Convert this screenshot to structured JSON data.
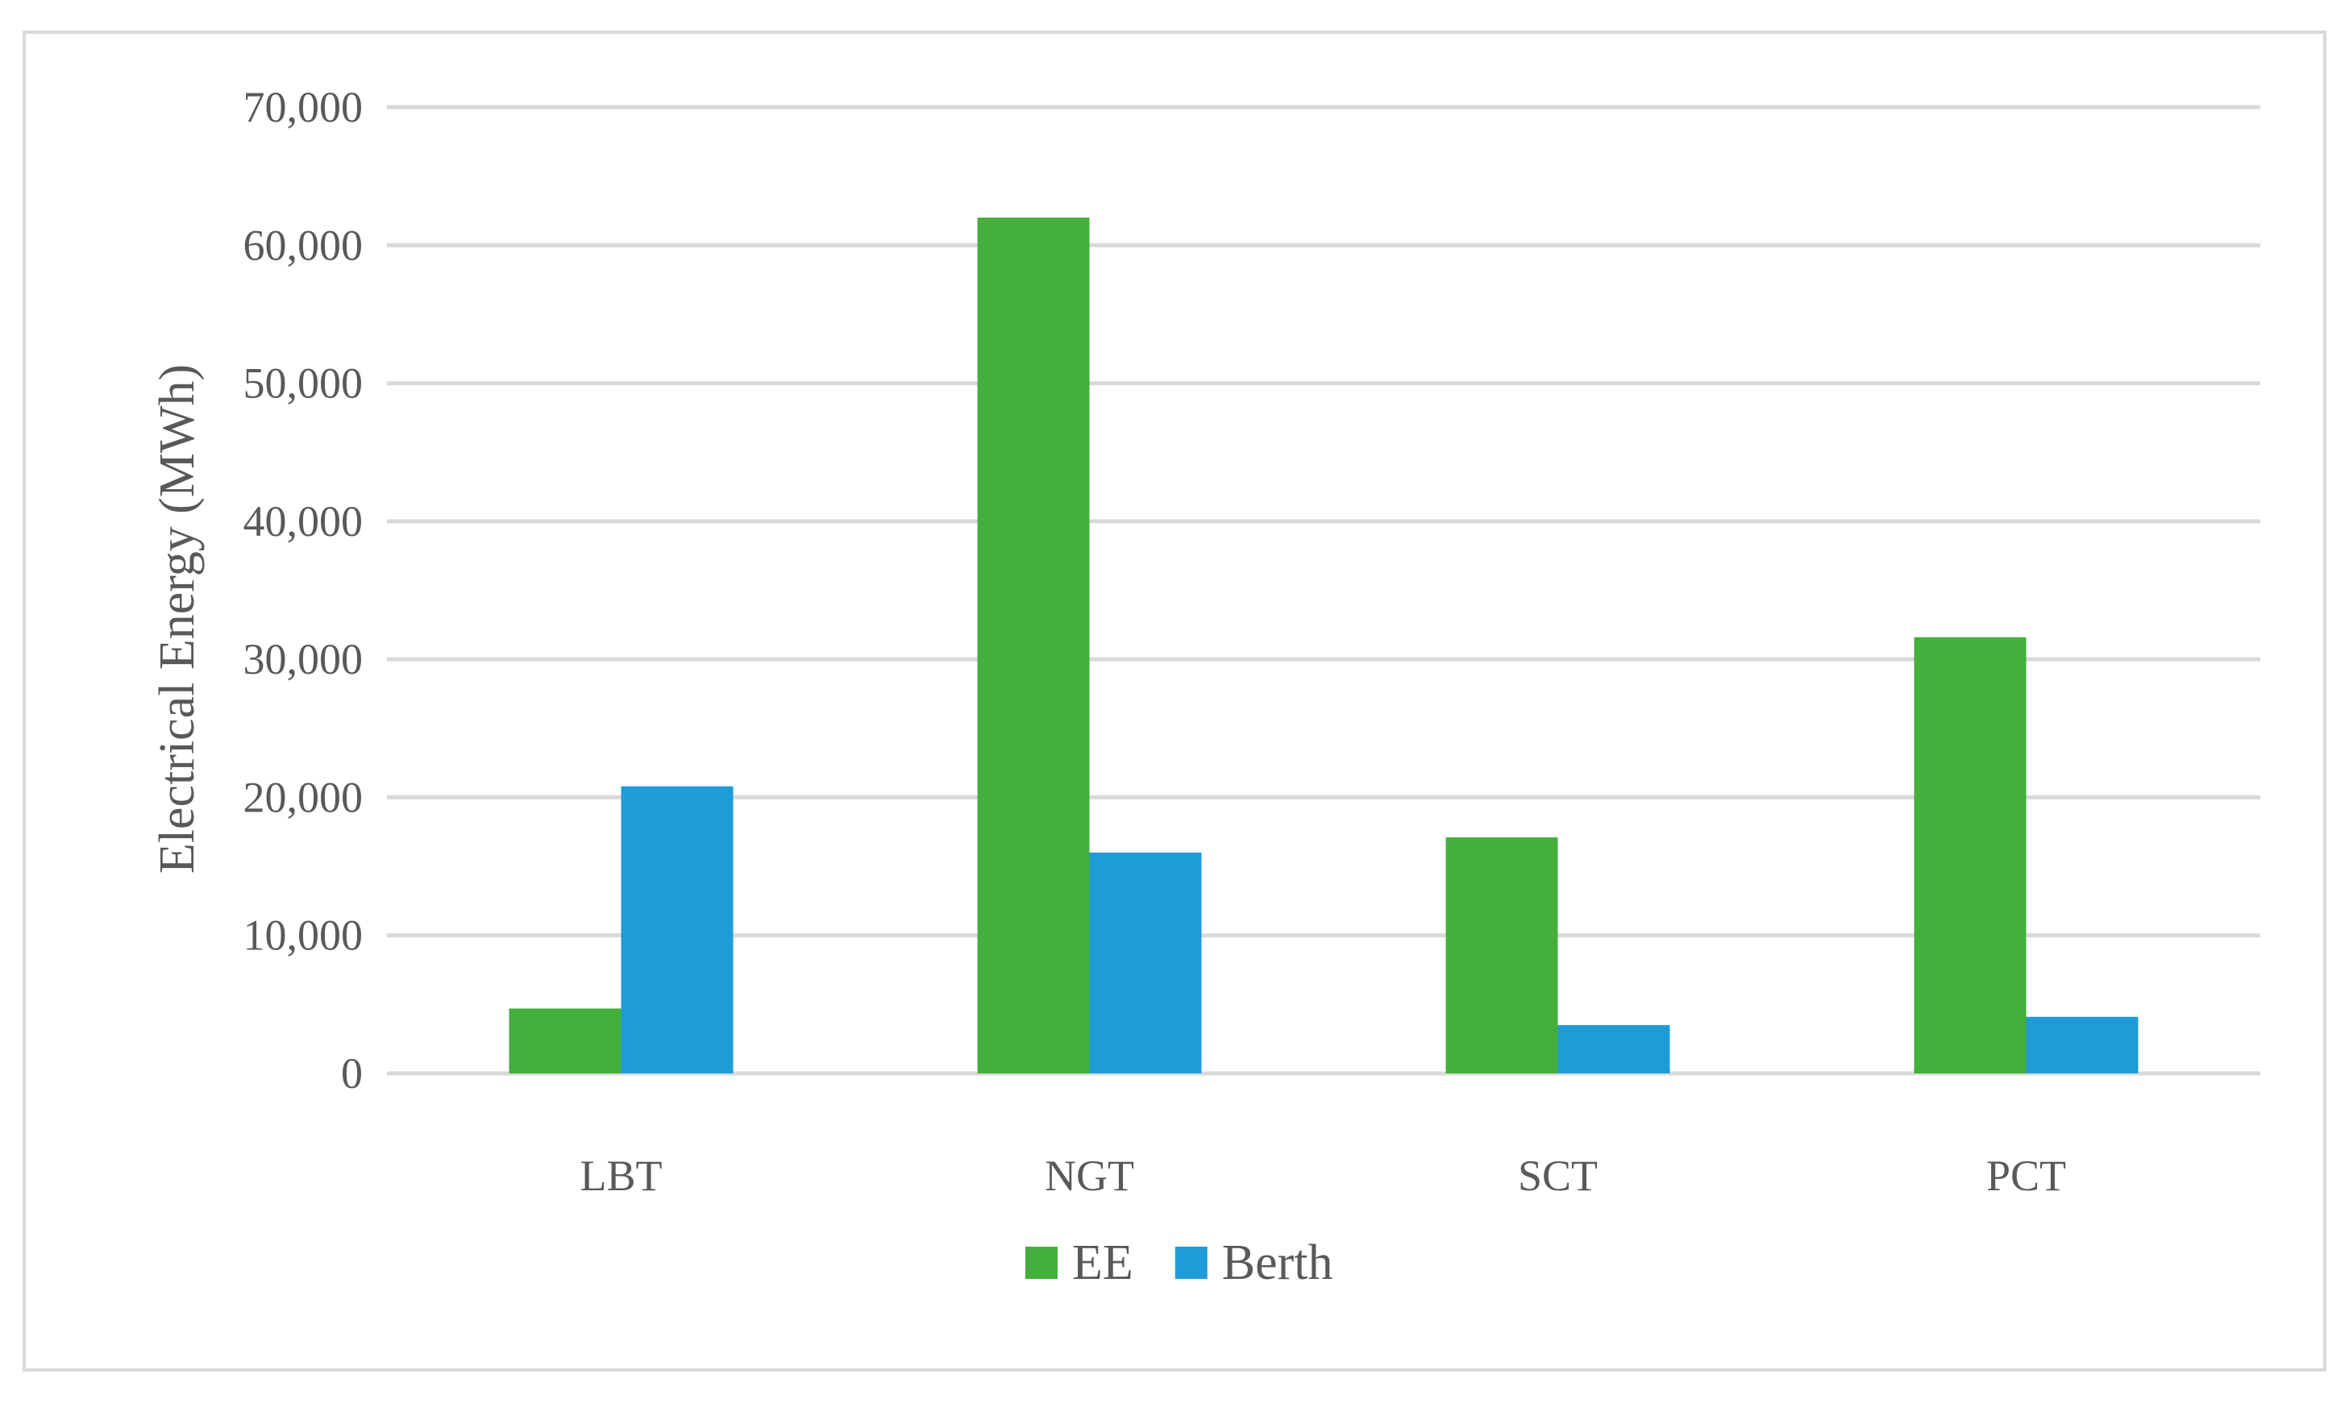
{
  "chart_data": {
    "type": "bar",
    "title": "",
    "xlabel": "",
    "ylabel": "Electrical Energy (MWh)",
    "categories": [
      "LBT",
      "NGT",
      "SCT",
      "PCT"
    ],
    "series": [
      {
        "name": "EE",
        "color": "#44af3d",
        "values": [
          4700,
          62000,
          17100,
          31600
        ]
      },
      {
        "name": "Berth",
        "color": "#1f9cd8",
        "values": [
          20800,
          16000,
          3500,
          4100
        ]
      }
    ],
    "ylim": [
      0,
      70000
    ],
    "yticks": [
      0,
      10000,
      20000,
      30000,
      40000,
      50000,
      60000,
      70000
    ],
    "ytick_labels": [
      "0",
      "10,000",
      "20,000",
      "30,000",
      "40,000",
      "50,000",
      "60,000",
      "70,000"
    ],
    "grid": true,
    "grid_color": "#d9d9d9",
    "legend_position": "bottom"
  }
}
